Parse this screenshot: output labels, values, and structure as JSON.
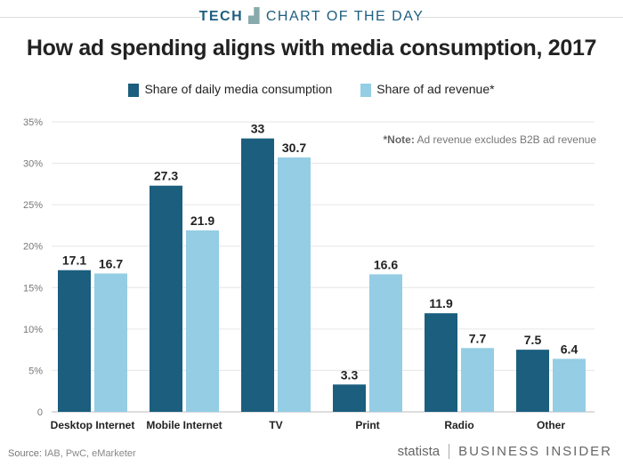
{
  "header": {
    "tech": "TECH",
    "chart_of_day": "CHART OF THE DAY"
  },
  "note": {
    "label": "*Note:",
    "text": "Ad revenue excludes B2B ad revenue"
  },
  "source": {
    "label": "Source:",
    "text": "IAB, PwC, eMarketer"
  },
  "brand": {
    "statista": "statista",
    "business_insider": "BUSINESS INSIDER"
  },
  "colors": {
    "series1": "#1b5e7e",
    "series2": "#94cde4"
  },
  "chart_data": {
    "type": "bar",
    "title": "How ad spending aligns with media consumption, 2017",
    "categories": [
      "Desktop Internet",
      "Mobile Internet",
      "TV",
      "Print",
      "Radio",
      "Other"
    ],
    "series": [
      {
        "name": "Share of daily media consumption",
        "values": [
          17.1,
          27.3,
          33,
          3.3,
          11.9,
          7.5
        ]
      },
      {
        "name": "Share of ad revenue*",
        "values": [
          16.7,
          21.9,
          30.7,
          16.6,
          7.7,
          6.4
        ]
      }
    ],
    "ylim": [
      0,
      35
    ],
    "yticks": [
      "0",
      "5%",
      "10%",
      "15%",
      "20%",
      "25%",
      "30%",
      "35%"
    ],
    "grid": true,
    "legend": "top"
  }
}
